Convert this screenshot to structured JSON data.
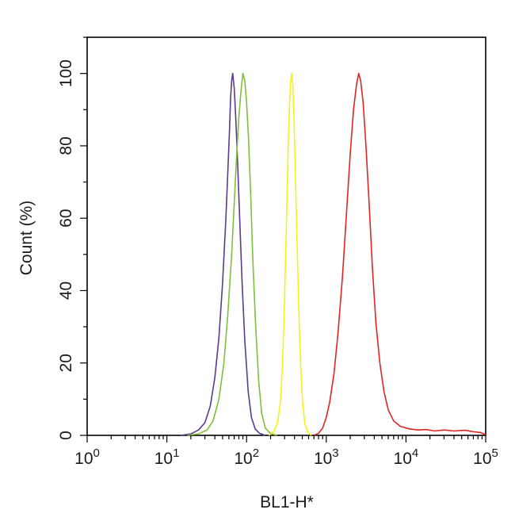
{
  "chart_data": {
    "type": "line",
    "title": "",
    "xlabel": "BL1-H*",
    "ylabel": "Count  (%)",
    "x_scale": "log",
    "xlim": [
      1,
      100000
    ],
    "ylim": [
      0,
      110
    ],
    "grid": false,
    "x_ticks": [
      {
        "value": 1,
        "base": "10",
        "exp": "0"
      },
      {
        "value": 10,
        "base": "10",
        "exp": "1"
      },
      {
        "value": 100,
        "base": "10",
        "exp": "2"
      },
      {
        "value": 1000,
        "base": "10",
        "exp": "3"
      },
      {
        "value": 10000,
        "base": "10",
        "exp": "4"
      },
      {
        "value": 100000,
        "base": "10",
        "exp": "5"
      }
    ],
    "y_ticks": [
      {
        "value": 0,
        "label": "0"
      },
      {
        "value": 20,
        "label": "20"
      },
      {
        "value": 40,
        "label": "40"
      },
      {
        "value": 60,
        "label": "60"
      },
      {
        "value": 80,
        "label": "80"
      },
      {
        "value": 100,
        "label": "100"
      }
    ],
    "series": [
      {
        "color": "#5b3b8c",
        "points": [
          [
            15,
            0
          ],
          [
            20,
            0.4
          ],
          [
            25,
            1.5
          ],
          [
            30,
            3.5
          ],
          [
            35,
            8
          ],
          [
            40,
            16
          ],
          [
            45,
            27
          ],
          [
            50,
            42
          ],
          [
            55,
            60
          ],
          [
            58,
            72
          ],
          [
            61,
            84
          ],
          [
            63,
            93
          ],
          [
            65,
            98
          ],
          [
            67,
            100
          ],
          [
            70,
            96
          ],
          [
            73,
            88
          ],
          [
            77,
            76
          ],
          [
            82,
            60
          ],
          [
            88,
            42
          ],
          [
            95,
            26
          ],
          [
            105,
            12
          ],
          [
            115,
            5
          ],
          [
            128,
            1.8
          ],
          [
            145,
            0.6
          ],
          [
            170,
            0
          ]
        ]
      },
      {
        "color": "#7fbf3a",
        "points": [
          [
            18,
            0
          ],
          [
            25,
            0.4
          ],
          [
            32,
            1.5
          ],
          [
            38,
            4
          ],
          [
            45,
            10
          ],
          [
            52,
            20
          ],
          [
            58,
            33
          ],
          [
            65,
            50
          ],
          [
            70,
            64
          ],
          [
            75,
            77
          ],
          [
            80,
            88
          ],
          [
            85,
            95
          ],
          [
            90,
            100
          ],
          [
            95,
            98
          ],
          [
            100,
            92
          ],
          [
            106,
            82
          ],
          [
            113,
            66
          ],
          [
            120,
            48
          ],
          [
            130,
            30
          ],
          [
            142,
            15
          ],
          [
            155,
            6
          ],
          [
            172,
            2
          ],
          [
            200,
            0.5
          ],
          [
            240,
            0
          ]
        ]
      },
      {
        "color": "#f2f21c",
        "points": [
          [
            190,
            0
          ],
          [
            220,
            1
          ],
          [
            245,
            3.5
          ],
          [
            265,
            9
          ],
          [
            280,
            18
          ],
          [
            295,
            32
          ],
          [
            310,
            50
          ],
          [
            322,
            66
          ],
          [
            335,
            82
          ],
          [
            348,
            93
          ],
          [
            358,
            98
          ],
          [
            368,
            100
          ],
          [
            380,
            97
          ],
          [
            393,
            88
          ],
          [
            410,
            72
          ],
          [
            430,
            54
          ],
          [
            450,
            36
          ],
          [
            475,
            20
          ],
          [
            505,
            9
          ],
          [
            540,
            3
          ],
          [
            590,
            0.8
          ],
          [
            650,
            0
          ]
        ]
      },
      {
        "color": "#e02424",
        "points": [
          [
            700,
            0
          ],
          [
            800,
            0.6
          ],
          [
            900,
            2
          ],
          [
            1000,
            5
          ],
          [
            1100,
            9
          ],
          [
            1250,
            17
          ],
          [
            1400,
            28
          ],
          [
            1600,
            44
          ],
          [
            1800,
            62
          ],
          [
            2000,
            78
          ],
          [
            2200,
            90
          ],
          [
            2400,
            97
          ],
          [
            2550,
            100
          ],
          [
            2700,
            98
          ],
          [
            2900,
            92
          ],
          [
            3150,
            80
          ],
          [
            3450,
            64
          ],
          [
            3800,
            46
          ],
          [
            4200,
            31
          ],
          [
            4700,
            20
          ],
          [
            5300,
            12
          ],
          [
            6000,
            7
          ],
          [
            7000,
            4
          ],
          [
            8500,
            2.5
          ],
          [
            11000,
            1.8
          ],
          [
            14000,
            1.5
          ],
          [
            18000,
            1.6
          ],
          [
            23000,
            1.2
          ],
          [
            30000,
            1.5
          ],
          [
            40000,
            1.2
          ],
          [
            55000,
            1.4
          ],
          [
            70000,
            1
          ],
          [
            85000,
            0.8
          ],
          [
            100000,
            0.2
          ]
        ]
      }
    ]
  }
}
